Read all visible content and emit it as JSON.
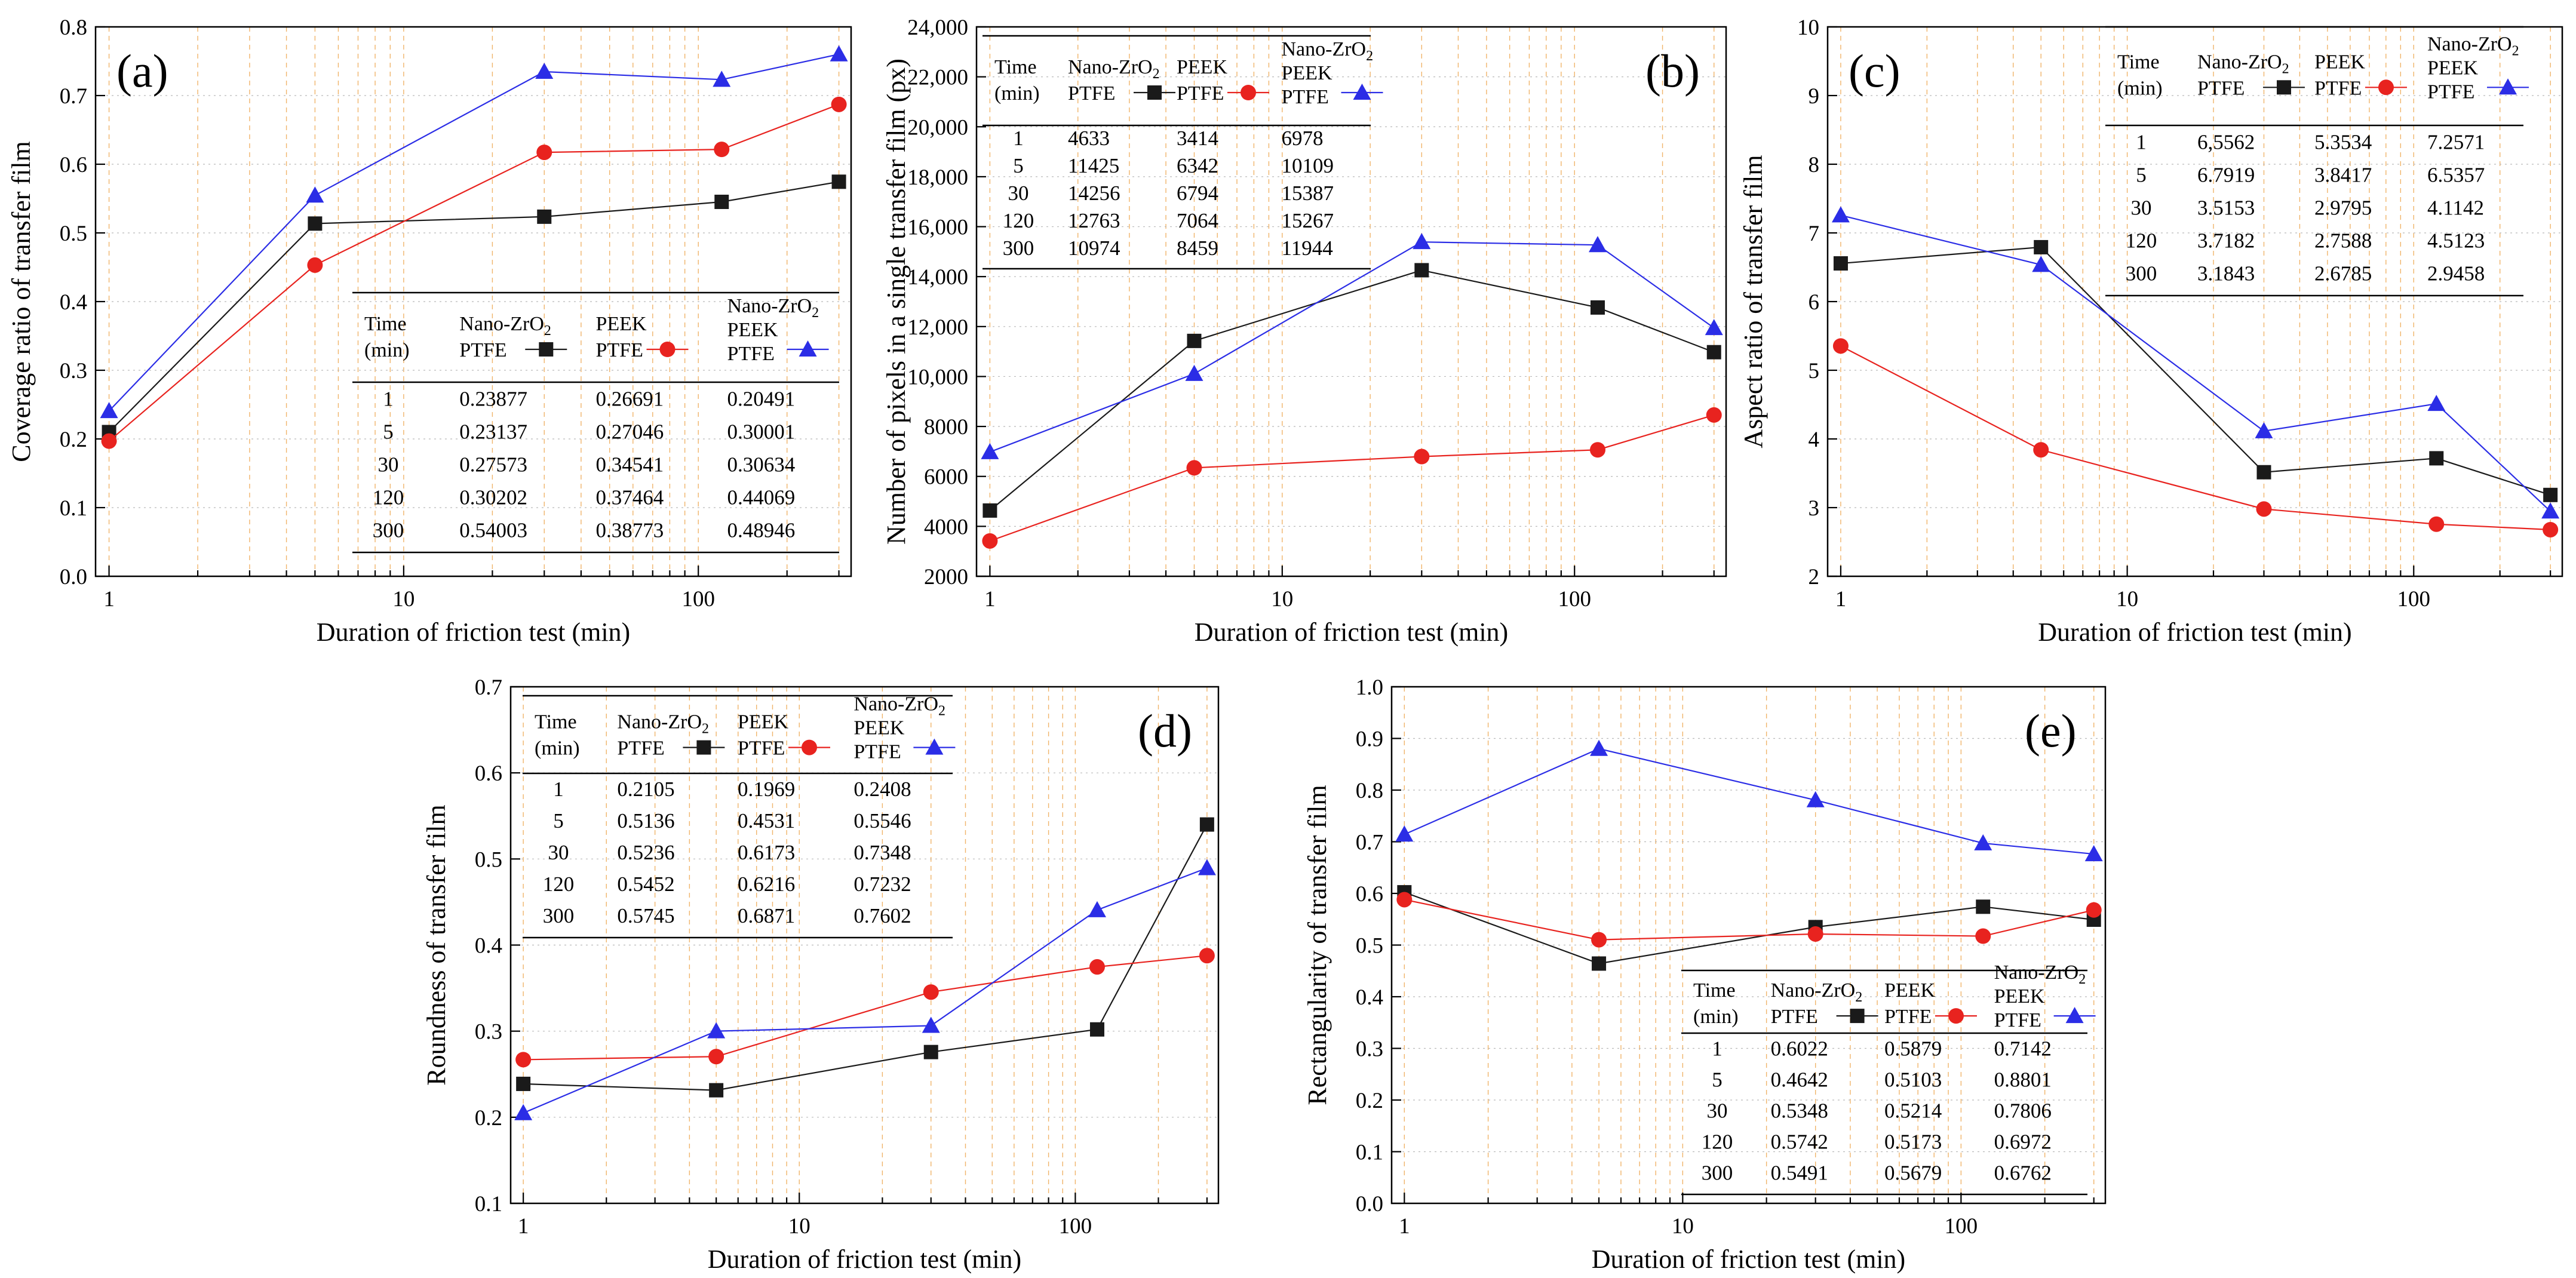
{
  "chart_data": [
    {
      "id": "a",
      "type": "line",
      "panel_label": "(a)",
      "xlabel": "Duration of friction test  (min)",
      "ylabel": "Coverage ratio of transfer film",
      "xscale": "log",
      "xlim": [
        0.9,
        330
      ],
      "xticks": [
        "1",
        "10",
        "100"
      ],
      "ylim": [
        0,
        0.8
      ],
      "yticks": [
        "0.0",
        "0.1",
        "0.2",
        "0.3",
        "0.4",
        "0.5",
        "0.6",
        "0.7",
        "0.8"
      ],
      "x": [
        1,
        5,
        30,
        120,
        300
      ],
      "series": [
        {
          "name": "Nano-ZrO2 PTFE",
          "color": "#1a1a1a",
          "marker": "square",
          "values": [
            0.21,
            0.5136,
            0.5236,
            0.5452,
            0.5745
          ]
        },
        {
          "name": "PEEK PTFE",
          "color": "#e8231f",
          "marker": "circle",
          "values": [
            0.1969,
            0.4531,
            0.6173,
            0.6216,
            0.6871
          ]
        },
        {
          "name": "Nano-ZrO2 PEEK PTFE",
          "color": "#2b2de6",
          "marker": "triangle",
          "values": [
            0.2408,
            0.5546,
            0.7348,
            0.7232,
            0.7602
          ]
        }
      ],
      "table": {
        "header": {
          "time": "Time",
          "time_unit": "(min)",
          "s1": "Nano-ZrO",
          "s1b": "PTFE",
          "s2": "PEEK",
          "s2b": "PTFE",
          "s3": "Nano-ZrO",
          "s3b": "PEEK",
          "s3c": "PTFE",
          "sub": "2"
        },
        "rows": [
          [
            "1",
            "0.23877",
            "0.26691",
            "0.20491"
          ],
          [
            "5",
            "0.23137",
            "0.27046",
            "0.30001"
          ],
          [
            "30",
            "0.27573",
            "0.34541",
            "0.30634"
          ],
          [
            "120",
            "0.30202",
            "0.37464",
            "0.44069"
          ],
          [
            "300",
            "0.54003",
            "0.38773",
            "0.48946"
          ]
        ]
      }
    },
    {
      "id": "b",
      "type": "line",
      "panel_label": "(b)",
      "xlabel": "Duration of friction test  (min)",
      "ylabel": "Number of pixels in a single transfer film (px)",
      "xscale": "log",
      "xlim": [
        0.9,
        330
      ],
      "xticks": [
        "1",
        "10",
        "100"
      ],
      "ylim": [
        2000,
        24000
      ],
      "yticks": [
        "2000",
        "4000",
        "6000",
        "8000",
        "10,000",
        "12,000",
        "14,000",
        "16,000",
        "18,000",
        "20,000",
        "22,000",
        "24,000"
      ],
      "x": [
        1,
        5,
        30,
        120,
        300
      ],
      "series": [
        {
          "name": "Nano-ZrO2 PTFE",
          "color": "#1a1a1a",
          "marker": "square",
          "values": [
            4633,
            11425,
            14256,
            12763,
            10974
          ]
        },
        {
          "name": "PEEK PTFE",
          "color": "#e8231f",
          "marker": "circle",
          "values": [
            3414,
            6342,
            6794,
            7064,
            8459
          ]
        },
        {
          "name": "Nano-ZrO2 PEEK PTFE",
          "color": "#2b2de6",
          "marker": "triangle",
          "values": [
            6978,
            10109,
            15387,
            15267,
            11944
          ]
        }
      ],
      "table": {
        "header": {
          "time": "Time",
          "time_unit": "(min)",
          "s1": "Nano-ZrO",
          "s1b": "PTFE",
          "s2": "PEEK",
          "s2b": "PTFE",
          "s3": "Nano-ZrO",
          "s3b": "PEEK",
          "s3c": "PTFE",
          "sub": "2"
        },
        "rows": [
          [
            "1",
            "4633",
            "3414",
            "6978"
          ],
          [
            "5",
            "11425",
            "6342",
            "10109"
          ],
          [
            "30",
            "14256",
            "6794",
            "15387"
          ],
          [
            "120",
            "12763",
            "7064",
            "15267"
          ],
          [
            "300",
            "10974",
            "8459",
            "11944"
          ]
        ]
      }
    },
    {
      "id": "c",
      "type": "line",
      "panel_label": "(c)",
      "xlabel": "Duration of friction test  (min)",
      "ylabel": "Aspect ratio of transfer film",
      "xscale": "log",
      "xlim": [
        0.9,
        330
      ],
      "xticks": [
        "1",
        "10",
        "100"
      ],
      "ylim": [
        2,
        10
      ],
      "yticks": [
        "2",
        "3",
        "4",
        "5",
        "6",
        "7",
        "8",
        "9",
        "10"
      ],
      "x": [
        1,
        5,
        30,
        120,
        300
      ],
      "series": [
        {
          "name": "Nano-ZrO2 PTFE",
          "color": "#1a1a1a",
          "marker": "square",
          "values": [
            6.5562,
            6.7919,
            3.5153,
            3.7182,
            3.1843
          ]
        },
        {
          "name": "PEEK PTFE",
          "color": "#e8231f",
          "marker": "circle",
          "values": [
            5.3534,
            3.8417,
            2.9795,
            2.7588,
            2.6785
          ]
        },
        {
          "name": "Nano-ZrO2 PEEK PTFE",
          "color": "#2b2de6",
          "marker": "triangle",
          "values": [
            7.2571,
            6.5357,
            4.1142,
            4.5123,
            2.9458
          ]
        }
      ],
      "table": {
        "header": {
          "time": "Time",
          "time_unit": "(min)",
          "s1": "Nano-ZrO",
          "s1b": "PTFE",
          "s2": "PEEK",
          "s2b": "PTFE",
          "s3": "Nano-ZrO",
          "s3b": "PEEK",
          "s3c": "PTFE",
          "sub": "2"
        },
        "rows": [
          [
            "1",
            "6,5562",
            "5.3534",
            "7.2571"
          ],
          [
            "5",
            "6.7919",
            "3.8417",
            "6.5357"
          ],
          [
            "30",
            "3.5153",
            "2.9795",
            "4.1142"
          ],
          [
            "120",
            "3.7182",
            "2.7588",
            "4.5123"
          ],
          [
            "300",
            "3.1843",
            "2.6785",
            "2.9458"
          ]
        ]
      }
    },
    {
      "id": "d",
      "type": "line",
      "panel_label": "(d)",
      "xlabel": "Duration of friction test  (min)",
      "ylabel": "Roundness of transfer film",
      "xscale": "log",
      "xlim": [
        0.9,
        330
      ],
      "xticks": [
        "1",
        "10",
        "100"
      ],
      "ylim": [
        0.1,
        0.7
      ],
      "yticks": [
        "0.1",
        "0.2",
        "0.3",
        "0.4",
        "0.5",
        "0.6",
        "0.7"
      ],
      "x": [
        1,
        5,
        30,
        120,
        300
      ],
      "series": [
        {
          "name": "Nano-ZrO2 PTFE",
          "color": "#1a1a1a",
          "marker": "square",
          "values": [
            0.23877,
            0.23137,
            0.27573,
            0.30202,
            0.54003
          ]
        },
        {
          "name": "PEEK PTFE",
          "color": "#e8231f",
          "marker": "circle",
          "values": [
            0.26691,
            0.27046,
            0.34541,
            0.37464,
            0.38773
          ]
        },
        {
          "name": "Nano-ZrO2 PEEK PTFE",
          "color": "#2b2de6",
          "marker": "triangle",
          "values": [
            0.20491,
            0.30001,
            0.30634,
            0.44069,
            0.48946
          ]
        }
      ],
      "table": {
        "header": {
          "time": "Time",
          "time_unit": "(min)",
          "s1": "Nano-ZrO",
          "s1b": "PTFE",
          "s2": "PEEK",
          "s2b": "PTFE",
          "s3": "Nano-ZrO",
          "s3b": "PEEK",
          "s3c": "PTFE",
          "sub": "2"
        },
        "rows": [
          [
            "1",
            "0.2105",
            "0.1969",
            "0.2408"
          ],
          [
            "5",
            "0.5136",
            "0.4531",
            "0.5546"
          ],
          [
            "30",
            "0.5236",
            "0.6173",
            "0.7348"
          ],
          [
            "120",
            "0.5452",
            "0.6216",
            "0.7232"
          ],
          [
            "300",
            "0.5745",
            "0.6871",
            "0.7602"
          ]
        ]
      }
    },
    {
      "id": "e",
      "type": "line",
      "panel_label": "(e)",
      "xlabel": "Duration of friction test  (min)",
      "ylabel": "Rectangularity of transfer film",
      "xscale": "log",
      "xlim": [
        0.9,
        330
      ],
      "xticks": [
        "1",
        "10",
        "100"
      ],
      "ylim": [
        0,
        1
      ],
      "yticks": [
        "0.0",
        "0.1",
        "0.2",
        "0.3",
        "0.4",
        "0.5",
        "0.6",
        "0.7",
        "0.8",
        "0.9",
        "1.0"
      ],
      "x": [
        1,
        5,
        30,
        120,
        300
      ],
      "series": [
        {
          "name": "Nano-ZrO2 PTFE",
          "color": "#1a1a1a",
          "marker": "square",
          "values": [
            0.6022,
            0.4642,
            0.5348,
            0.5742,
            0.5491
          ]
        },
        {
          "name": "PEEK PTFE",
          "color": "#e8231f",
          "marker": "circle",
          "values": [
            0.5879,
            0.5103,
            0.5214,
            0.5173,
            0.5679
          ]
        },
        {
          "name": "Nano-ZrO2 PEEK PTFE",
          "color": "#2b2de6",
          "marker": "triangle",
          "values": [
            0.7142,
            0.8801,
            0.7806,
            0.6972,
            0.6762
          ]
        }
      ],
      "table": {
        "header": {
          "time": "Time",
          "time_unit": "(min)",
          "s1": "Nano-ZrO",
          "s1b": "PTFE",
          "s2": "PEEK",
          "s2b": "PTFE",
          "s3": "Nano-ZrO",
          "s3b": "PEEK",
          "s3c": "PTFE",
          "sub": "2"
        },
        "rows": [
          [
            "1",
            "0.6022",
            "0.5879",
            "0.7142"
          ],
          [
            "5",
            "0.4642",
            "0.5103",
            "0.8801"
          ],
          [
            "30",
            "0.5348",
            "0.5214",
            "0.7806"
          ],
          [
            "120",
            "0.5742",
            "0.5173",
            "0.6972"
          ],
          [
            "300",
            "0.5491",
            "0.5679",
            "0.6762"
          ]
        ]
      }
    }
  ]
}
